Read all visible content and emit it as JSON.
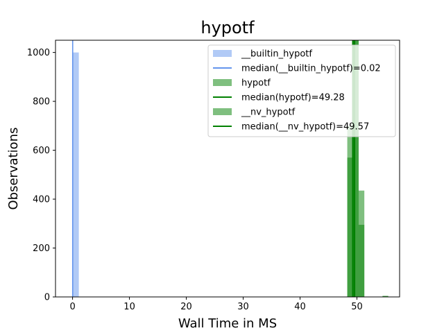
{
  "chart_data": {
    "type": "bar",
    "title": "hypotf",
    "xlabel": "Wall Time in MS",
    "ylabel": "Observations",
    "xlim": [
      -3.0,
      57.5
    ],
    "ylim": [
      0,
      1050
    ],
    "xticks": [
      0,
      10,
      20,
      30,
      40,
      50
    ],
    "yticks": [
      0,
      200,
      400,
      600,
      800,
      1000
    ],
    "grid": false,
    "legend_position": "top-right",
    "series": [
      {
        "name": "__builtin_hypotf",
        "kind": "histogram",
        "color": "#6495ed",
        "alpha": 0.5,
        "bins": [
          {
            "x0": -0.03,
            "x1": 1.1,
            "count": 1000
          }
        ]
      },
      {
        "name": "hypotf",
        "kind": "histogram",
        "color": "#008000",
        "alpha": 0.5,
        "bins": [
          {
            "x0": 48.3,
            "x1": 49.3,
            "count": 570
          },
          {
            "x0": 49.3,
            "x1": 50.3,
            "count": 1050
          },
          {
            "x0": 50.3,
            "x1": 51.3,
            "count": 295
          },
          {
            "x0": 54.5,
            "x1": 55.5,
            "count": 4
          }
        ]
      },
      {
        "name": "__nv_hypotf",
        "kind": "histogram",
        "color": "#008000",
        "alpha": 0.5,
        "bins": [
          {
            "x0": 48.3,
            "x1": 49.3,
            "count": 700
          },
          {
            "x0": 49.3,
            "x1": 50.3,
            "count": 1050
          },
          {
            "x0": 50.3,
            "x1": 51.3,
            "count": 435
          },
          {
            "x0": 54.5,
            "x1": 55.5,
            "count": 4
          }
        ]
      }
    ],
    "medians": [
      {
        "label": "median(__builtin_hypotf)=0.02",
        "value": 0.02,
        "color": "#6495ed"
      },
      {
        "label": "median(hypotf)=49.28",
        "value": 49.28,
        "color": "#008000"
      },
      {
        "label": "median(__nv_hypotf)=49.57",
        "value": 49.57,
        "color": "#008000"
      }
    ],
    "legend": [
      {
        "label": "__builtin_hypotf",
        "kind": "patch",
        "color": "#6495ed",
        "alpha": 0.5
      },
      {
        "label": "median(__builtin_hypotf)=0.02",
        "kind": "line",
        "color": "#6495ed"
      },
      {
        "label": "hypotf",
        "kind": "patch",
        "color": "#008000",
        "alpha": 0.5
      },
      {
        "label": "median(hypotf)=49.28",
        "kind": "line",
        "color": "#008000"
      },
      {
        "label": "__nv_hypotf",
        "kind": "patch",
        "color": "#008000",
        "alpha": 0.5
      },
      {
        "label": "median(__nv_hypotf)=49.57",
        "kind": "line",
        "color": "#008000"
      }
    ]
  }
}
